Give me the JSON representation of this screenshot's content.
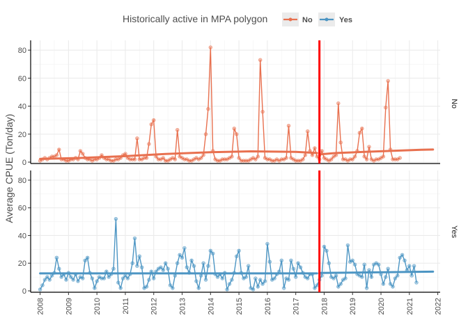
{
  "chart_data": {
    "type": "line",
    "ylabel": "Average CPUE (Ton/day)",
    "legend": {
      "title": "Historically active in MPA polygon",
      "position": "top",
      "entries": [
        {
          "label": "No",
          "color": "#E8704F"
        },
        {
          "label": "Yes",
          "color": "#4C95C3"
        }
      ]
    },
    "x_ticks": [
      "2008",
      "2009",
      "2010",
      "2011",
      "2012",
      "2013",
      "2014",
      "2015",
      "2016",
      "2017",
      "2018",
      "2019",
      "2020",
      "2021",
      "2022"
    ],
    "xlim": [
      "2007-09-01",
      "2022-02-01"
    ],
    "panels": [
      {
        "facet": "No",
        "ylim": [
          0,
          87
        ],
        "y_ticks": [
          "0",
          "20",
          "40",
          "60",
          "80"
        ]
      },
      {
        "facet": "Yes",
        "ylim": [
          0,
          87
        ],
        "y_ticks": [
          "0",
          "20",
          "40",
          "60",
          "80"
        ]
      }
    ],
    "vline": {
      "date": "2017-11-01",
      "color": "#FF0000"
    },
    "series": [
      {
        "name": "No",
        "color": "#E8704F",
        "start": "2008-01",
        "values": [
          1,
          2,
          3,
          2,
          3,
          4,
          4,
          5,
          9,
          2,
          2,
          1,
          1,
          2,
          2,
          3,
          2,
          8,
          6,
          3,
          2,
          2,
          1,
          2,
          2,
          3,
          5,
          3,
          2,
          2,
          1,
          1,
          2,
          2,
          3,
          5,
          6,
          3,
          2,
          2,
          2,
          17,
          2,
          2,
          3,
          3,
          13,
          27,
          30,
          4,
          2,
          2,
          3,
          1,
          1,
          2,
          3,
          2,
          23,
          4,
          3,
          2,
          2,
          1,
          1,
          2,
          3,
          2,
          3,
          5,
          20,
          38,
          82,
          8,
          2,
          1,
          1,
          2,
          2,
          2,
          3,
          4,
          24,
          20,
          3,
          1,
          1,
          1,
          1,
          2,
          3,
          2,
          4,
          73,
          36,
          3,
          2,
          2,
          1,
          1,
          2,
          1,
          2,
          2,
          3,
          26,
          3,
          2,
          1,
          1,
          1,
          2,
          5,
          22,
          8,
          5,
          10,
          4,
          2,
          8,
          3,
          2,
          1,
          2,
          4,
          5,
          42,
          14,
          2,
          2,
          1,
          2,
          2,
          4,
          8,
          21,
          24,
          4,
          2,
          11,
          2,
          1,
          2,
          2,
          3,
          4,
          39,
          58,
          9,
          2,
          2,
          2,
          3
        ],
        "trend": {
          "dates": [
            "2008-01",
            "2009-06",
            "2011-01",
            "2012-06",
            "2014-01",
            "2015-06",
            "2017-01",
            "2017-10"
          ],
          "values": [
            2.3,
            3.0,
            4.3,
            5.8,
            7.1,
            7.7,
            7.3,
            6.5
          ]
        },
        "trend_after": {
          "dates": [
            "2017-11",
            "2018-06",
            "2019-06",
            "2020-06",
            "2021-06",
            "2021-11"
          ],
          "values": [
            5.5,
            6.5,
            7.3,
            8.1,
            8.8,
            9.0
          ]
        }
      },
      {
        "name": "Yes",
        "color": "#4C95C3",
        "start": "2008-01",
        "values": [
          1,
          4,
          8,
          10,
          8,
          11,
          13,
          24,
          16,
          10,
          12,
          8,
          13,
          10,
          8,
          12,
          7,
          10,
          9,
          22,
          24,
          13,
          9,
          2,
          7,
          10,
          9,
          9,
          14,
          10,
          12,
          16,
          52,
          6,
          2,
          9,
          11,
          9,
          12,
          20,
          38,
          18,
          25,
          17,
          2,
          3,
          8,
          14,
          9,
          14,
          16,
          17,
          15,
          20,
          16,
          4,
          2,
          11,
          20,
          26,
          24,
          31,
          17,
          13,
          22,
          18,
          7,
          2,
          11,
          20,
          8,
          18,
          29,
          27,
          12,
          10,
          12,
          9,
          13,
          1,
          5,
          8,
          13,
          25,
          29,
          13,
          9,
          10,
          18,
          2,
          1,
          9,
          3,
          8,
          5,
          7,
          34,
          21,
          8,
          9,
          12,
          14,
          22,
          2,
          9,
          8,
          22,
          16,
          10,
          20,
          17,
          13,
          10,
          9,
          12,
          12,
          2,
          4,
          8,
          11,
          32,
          29,
          20,
          10,
          9,
          11,
          3,
          5,
          8,
          9,
          33,
          21,
          22,
          19,
          12,
          11,
          10,
          19,
          2,
          15,
          10,
          19,
          20,
          19,
          12,
          5,
          10,
          16,
          5,
          3,
          9,
          11,
          24,
          26,
          22,
          15,
          18,
          11,
          18,
          6
        ],
        "trend": {
          "dates": [
            "2008-01",
            "2017-10"
          ],
          "values": [
            12.6,
            12.6
          ]
        },
        "trend_after": {
          "dates": [
            "2017-11",
            "2021-11"
          ],
          "values": [
            12.9,
            13.9
          ]
        }
      }
    ]
  }
}
